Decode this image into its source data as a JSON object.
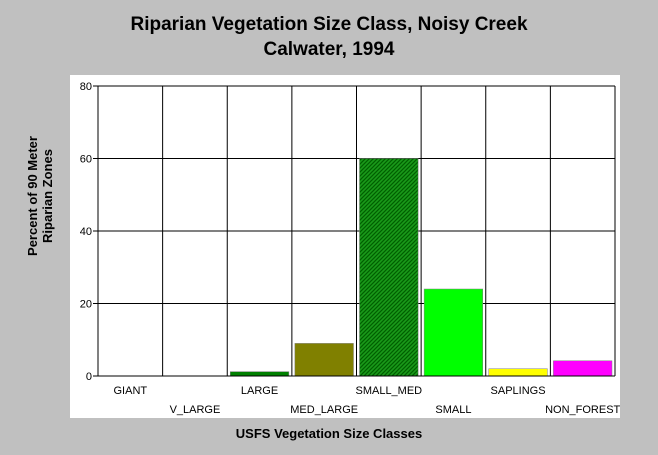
{
  "chart_data": {
    "type": "bar",
    "title": "Riparian Vegetation Size Class, Noisy Creek",
    "subtitle": "Calwater, 1994",
    "xlabel": "USFS Vegetation Size Classes",
    "ylabel_line1": "Percent of 90 Meter",
    "ylabel_line2": "Riparian Zones",
    "categories": [
      "GIANT",
      "V_LARGE",
      "LARGE",
      "MED_LARGE",
      "SMALL_MED",
      "SMALL",
      "SAPLINGS",
      "NON_FOREST"
    ],
    "values": [
      0,
      0,
      1.2,
      9,
      60,
      24,
      2,
      4.2
    ],
    "colors": [
      "#ffffff",
      "#ffffff",
      "#008000",
      "#808000",
      "#008000",
      "#00ff00",
      "#ffff00",
      "#ff00ff"
    ],
    "patterned": [
      false,
      false,
      false,
      false,
      true,
      false,
      false,
      false
    ],
    "ylim": [
      0,
      80
    ],
    "yticks": [
      0,
      20,
      40,
      60,
      80
    ],
    "grid": true,
    "legend": "none"
  }
}
